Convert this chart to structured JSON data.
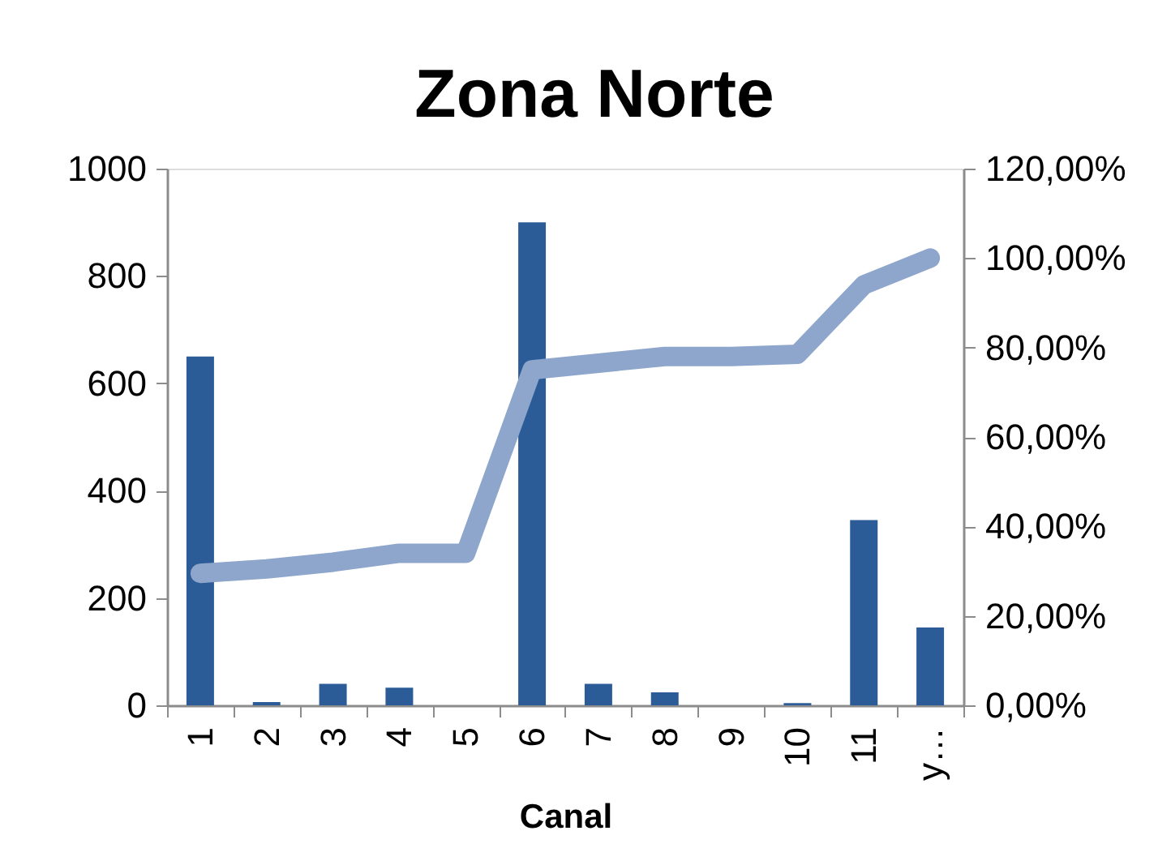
{
  "chart_data": {
    "type": "bar",
    "title": "Zona Norte",
    "xlabel": "Canal",
    "categories": [
      "1",
      "2",
      "3",
      "4",
      "5",
      "6",
      "7",
      "8",
      "9",
      "10",
      "11",
      "y…"
    ],
    "series": [
      {
        "color": "#2c5c98",
        "values": [
          650,
          6,
          40,
          33,
          0,
          900,
          40,
          24,
          0,
          4,
          345,
          145
        ]
      },
      {
        "type": "line",
        "axis": "y2",
        "color": "#8ea6cc",
        "values": [
          29.5,
          30.5,
          32,
          34,
          34,
          75,
          76.5,
          78,
          78,
          78.5,
          94,
          100
        ]
      }
    ],
    "ylim": [
      0,
      1000
    ],
    "yticks": [
      0,
      200,
      400,
      600,
      800,
      1000
    ],
    "y2lim": [
      0,
      120
    ],
    "y2ticks": [
      {
        "value": 0,
        "label": "0,00%"
      },
      {
        "value": 20,
        "label": "20,00%"
      },
      {
        "value": 40,
        "label": "40,00%"
      },
      {
        "value": 60,
        "label": "60,00%"
      },
      {
        "value": 80,
        "label": "80,00%"
      },
      {
        "value": 100,
        "label": "100,00%"
      },
      {
        "value": 120,
        "label": "120,00%"
      }
    ]
  }
}
